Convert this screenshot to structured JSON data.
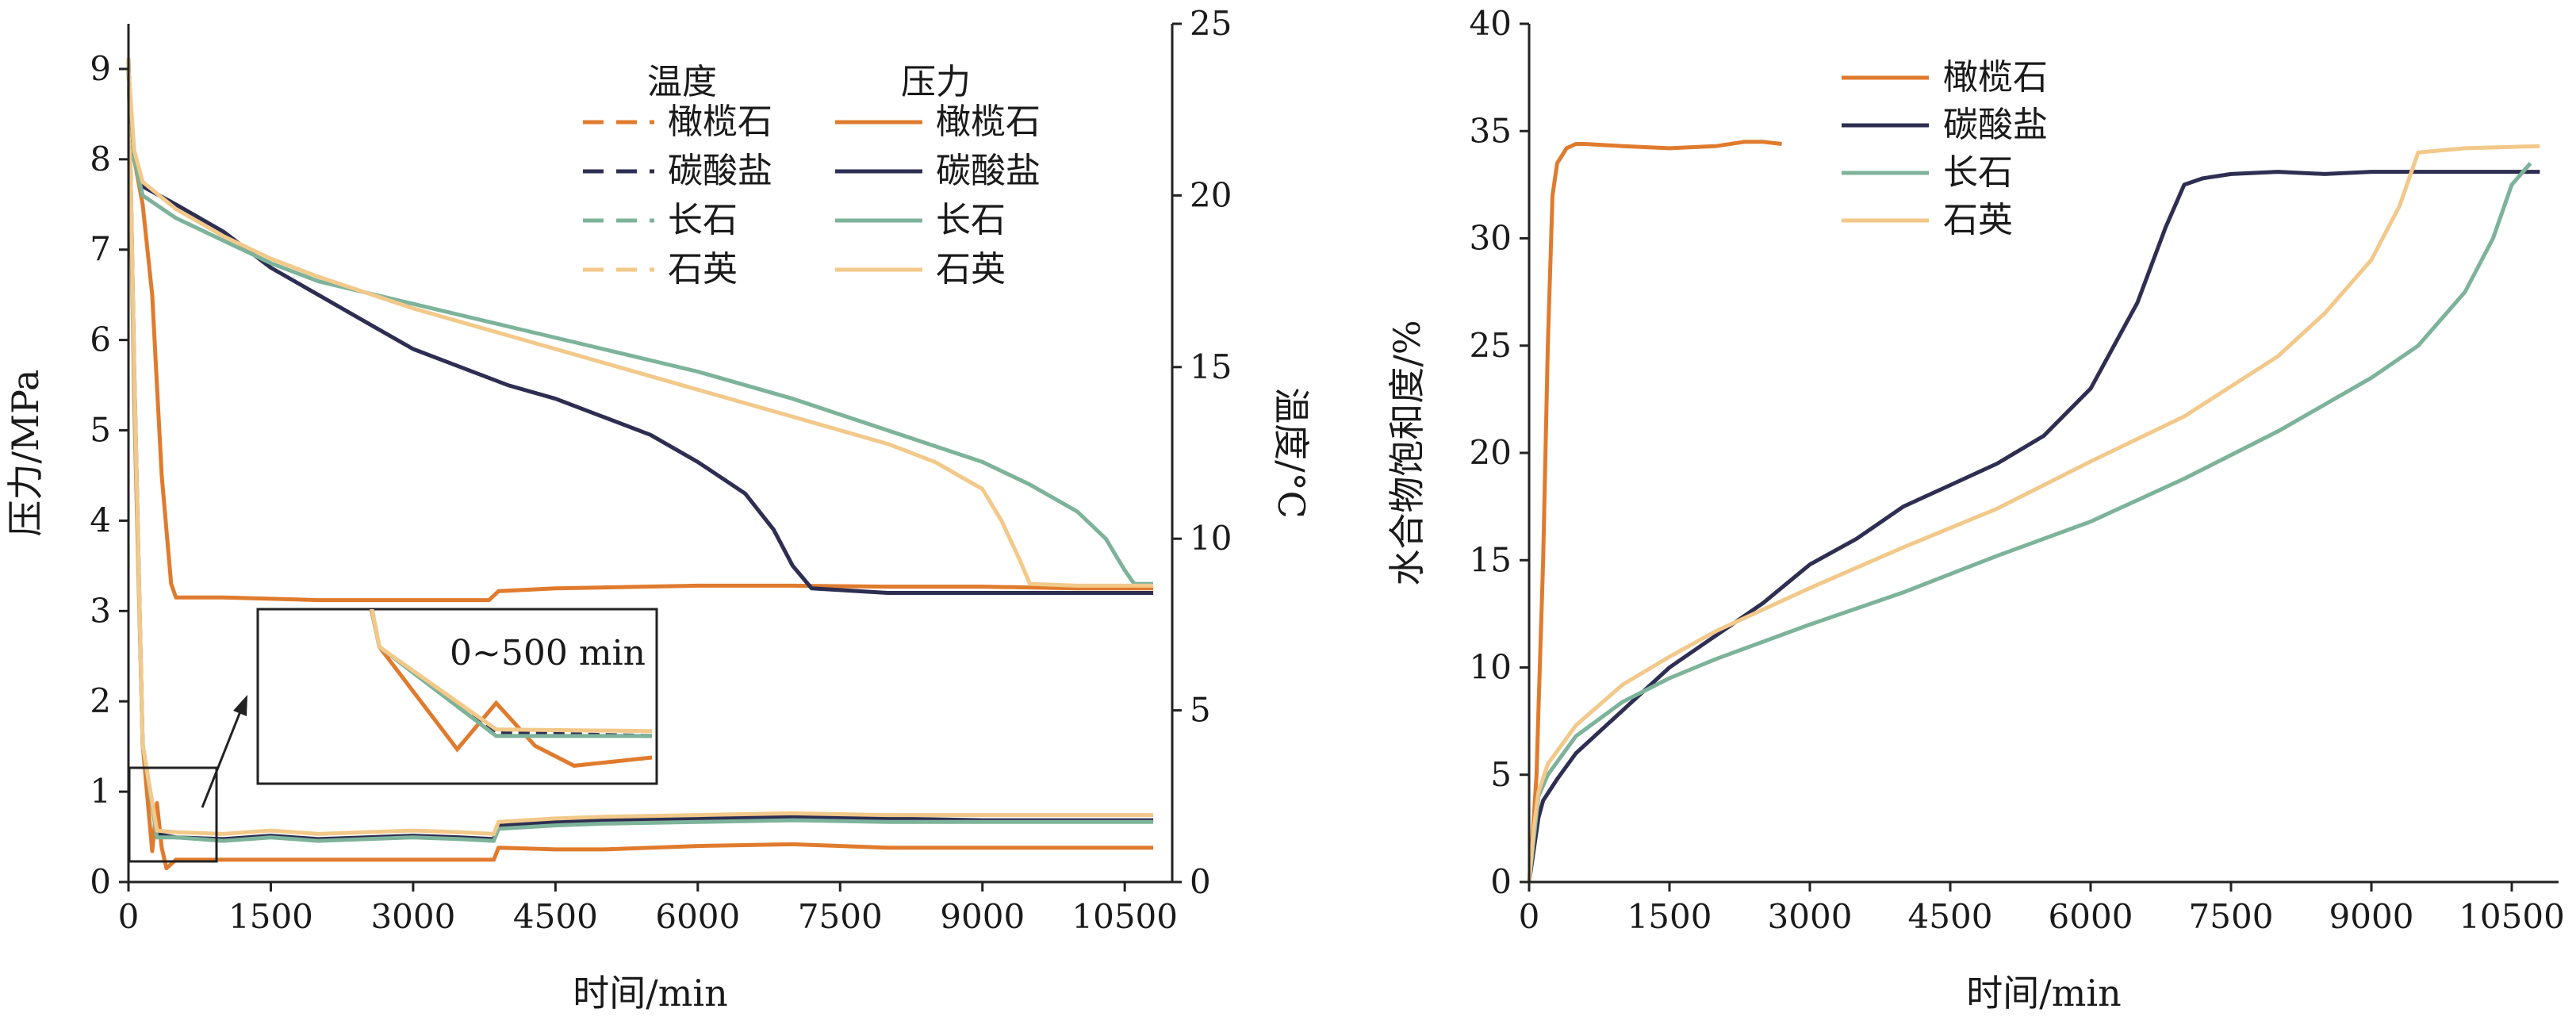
{
  "chart_data": [
    {
      "type": "line",
      "xlabel": "时间/min",
      "ylabel": "压力/MPa",
      "y2label": "温度/°C",
      "xlim": [
        0,
        11000
      ],
      "ylim": [
        0,
        9.5
      ],
      "y2lim": [
        0,
        25
      ],
      "xticks": [
        0,
        1500,
        3000,
        4500,
        6000,
        7500,
        9000,
        10500
      ],
      "yticks": [
        0,
        1,
        2,
        3,
        4,
        5,
        6,
        7,
        8,
        9
      ],
      "y2ticks": [
        0,
        5,
        10,
        15,
        20,
        25
      ],
      "legend": {
        "temp_header": "温度",
        "pressure_header": "压力",
        "placement": "top-right",
        "entries": [
          "橄榄石",
          "碳酸盐",
          "长石",
          "石英"
        ]
      },
      "inset_label": "0~500 min",
      "colors": {
        "olivine": "#E07B2E",
        "carbonate": "#2E2E52",
        "feldspar": "#7DB39A",
        "quartz": "#F2C98A"
      },
      "series": [
        {
          "name": "橄榄石",
          "kind": "pressure",
          "color": "#E07B2E",
          "x": [
            0,
            60,
            150,
            250,
            350,
            450,
            500,
            1000,
            2000,
            3000,
            3800,
            3900,
            4500,
            6000,
            7000,
            8000,
            9000,
            10000,
            10800
          ],
          "y": [
            9.0,
            8.0,
            7.5,
            6.5,
            4.5,
            3.3,
            3.15,
            3.15,
            3.12,
            3.12,
            3.12,
            3.22,
            3.25,
            3.28,
            3.28,
            3.27,
            3.27,
            3.25,
            3.25
          ]
        },
        {
          "name": "碳酸盐",
          "kind": "pressure",
          "color": "#2E2E52",
          "x": [
            0,
            60,
            150,
            500,
            1000,
            1500,
            2000,
            2500,
            3000,
            3500,
            4000,
            4500,
            5000,
            5500,
            6000,
            6500,
            6800,
            7000,
            7200,
            8000,
            9000,
            10000,
            10800
          ],
          "y": [
            9.0,
            8.0,
            7.7,
            7.5,
            7.2,
            6.8,
            6.5,
            6.2,
            5.9,
            5.7,
            5.5,
            5.35,
            5.15,
            4.95,
            4.65,
            4.3,
            3.9,
            3.5,
            3.25,
            3.2,
            3.2,
            3.2,
            3.2
          ]
        },
        {
          "name": "长石",
          "kind": "pressure",
          "color": "#7DB39A",
          "x": [
            0,
            60,
            150,
            500,
            1000,
            1500,
            2000,
            3000,
            4000,
            5000,
            6000,
            7000,
            8000,
            9000,
            9500,
            10000,
            10300,
            10500,
            10600,
            10800
          ],
          "y": [
            9.0,
            8.0,
            7.6,
            7.35,
            7.1,
            6.85,
            6.65,
            6.4,
            6.15,
            5.9,
            5.65,
            5.35,
            5.0,
            4.65,
            4.4,
            4.1,
            3.8,
            3.45,
            3.3,
            3.3
          ]
        },
        {
          "name": "石英",
          "kind": "pressure",
          "color": "#F2C98A",
          "x": [
            0,
            60,
            150,
            500,
            1000,
            1500,
            2000,
            3000,
            4000,
            5000,
            6000,
            7000,
            8000,
            8500,
            9000,
            9200,
            9400,
            9500,
            10000,
            10800
          ],
          "y": [
            9.0,
            8.1,
            7.75,
            7.45,
            7.15,
            6.9,
            6.7,
            6.35,
            6.05,
            5.75,
            5.45,
            5.15,
            4.85,
            4.65,
            4.35,
            4.0,
            3.55,
            3.3,
            3.28,
            3.28
          ]
        },
        {
          "name": "橄榄石",
          "kind": "temperature",
          "color": "#E07B2E",
          "x": [
            0,
            60,
            150,
            250,
            300,
            350,
            400,
            500,
            1000,
            1500,
            2000,
            2500,
            3000,
            3500,
            3850,
            3900,
            4500,
            5000,
            6000,
            7000,
            8000,
            9000,
            10000,
            10800
          ],
          "y": [
            24,
            14,
            4,
            0.9,
            2.3,
            1.0,
            0.4,
            0.65,
            0.65,
            0.65,
            0.65,
            0.65,
            0.65,
            0.65,
            0.65,
            1.0,
            0.95,
            0.95,
            1.05,
            1.1,
            1.0,
            1.0,
            1.0,
            1.0
          ]
        },
        {
          "name": "碳酸盐",
          "kind": "temperature",
          "color": "#2E2E52",
          "x": [
            0,
            60,
            150,
            300,
            500,
            1000,
            1500,
            2000,
            2500,
            3000,
            3500,
            3850,
            3900,
            4500,
            5000,
            6000,
            7000,
            8000,
            9000,
            10000,
            10800
          ],
          "y": [
            24,
            15,
            4,
            1.4,
            1.3,
            1.25,
            1.35,
            1.25,
            1.3,
            1.35,
            1.3,
            1.25,
            1.65,
            1.75,
            1.8,
            1.85,
            1.9,
            1.85,
            1.8,
            1.8,
            1.8
          ]
        },
        {
          "name": "长石",
          "kind": "temperature",
          "color": "#7DB39A",
          "x": [
            0,
            60,
            150,
            300,
            500,
            1000,
            1500,
            2000,
            2500,
            3000,
            3500,
            3850,
            3900,
            4500,
            5000,
            6000,
            7000,
            8000,
            9000,
            10000,
            10800
          ],
          "y": [
            24,
            14.5,
            4,
            1.3,
            1.3,
            1.2,
            1.3,
            1.2,
            1.25,
            1.3,
            1.25,
            1.2,
            1.55,
            1.65,
            1.7,
            1.75,
            1.8,
            1.75,
            1.75,
            1.75,
            1.75
          ]
        },
        {
          "name": "石英",
          "kind": "temperature",
          "color": "#F2C98A",
          "x": [
            0,
            60,
            150,
            300,
            500,
            1000,
            1500,
            2000,
            2500,
            3000,
            3500,
            3850,
            3900,
            4500,
            5000,
            6000,
            7000,
            8000,
            9000,
            10000,
            10800
          ],
          "y": [
            24,
            15,
            4,
            1.5,
            1.45,
            1.4,
            1.5,
            1.4,
            1.45,
            1.5,
            1.45,
            1.4,
            1.75,
            1.85,
            1.9,
            1.95,
            2.0,
            1.95,
            1.95,
            1.95,
            1.95
          ]
        }
      ]
    },
    {
      "type": "line",
      "xlabel": "时间/min",
      "ylabel": "水合物饱和度/%",
      "xlim": [
        0,
        11000
      ],
      "ylim": [
        0,
        40
      ],
      "xticks": [
        0,
        1500,
        3000,
        4500,
        6000,
        7500,
        9000,
        10500
      ],
      "yticks": [
        0,
        5,
        10,
        15,
        20,
        25,
        30,
        35,
        40
      ],
      "legend": {
        "placement": "top-left",
        "entries": [
          "橄榄石",
          "碳酸盐",
          "长石",
          "石英"
        ]
      },
      "series": [
        {
          "name": "橄榄石",
          "color": "#E07B2E",
          "x": [
            0,
            50,
            80,
            100,
            150,
            200,
            250,
            300,
            400,
            500,
            600,
            1000,
            1500,
            2000,
            2300,
            2500,
            2700
          ],
          "y": [
            0,
            3,
            5,
            8,
            15,
            25,
            32,
            33.5,
            34.2,
            34.4,
            34.4,
            34.3,
            34.2,
            34.3,
            34.5,
            34.5,
            34.4
          ]
        },
        {
          "name": "碳酸盐",
          "color": "#2E2E52",
          "x": [
            0,
            100,
            150,
            300,
            500,
            1000,
            1500,
            2000,
            2500,
            3000,
            3500,
            4000,
            4500,
            5000,
            5500,
            6000,
            6500,
            6800,
            7000,
            7200,
            7500,
            8000,
            8500,
            9000,
            10000,
            10800
          ],
          "y": [
            0,
            3,
            3.8,
            4.8,
            6,
            8,
            10,
            11.5,
            13,
            14.8,
            16,
            17.5,
            18.5,
            19.5,
            20.8,
            23,
            27,
            30.5,
            32.5,
            32.8,
            33,
            33.1,
            33,
            33.1,
            33.1,
            33.1
          ]
        },
        {
          "name": "长石",
          "color": "#7DB39A",
          "x": [
            0,
            50,
            100,
            200,
            500,
            1000,
            1500,
            2000,
            3000,
            4000,
            5000,
            6000,
            7000,
            8000,
            9000,
            9500,
            10000,
            10300,
            10500,
            10700
          ],
          "y": [
            0,
            2,
            4,
            5,
            6.8,
            8.4,
            9.5,
            10.4,
            12,
            13.5,
            15.2,
            16.8,
            18.8,
            21,
            23.5,
            25,
            27.5,
            30,
            32.5,
            33.5
          ]
        },
        {
          "name": "石英",
          "color": "#F2C98A",
          "x": [
            0,
            50,
            100,
            200,
            500,
            1000,
            1500,
            2000,
            3000,
            4000,
            5000,
            6000,
            7000,
            8000,
            8500,
            9000,
            9300,
            9500,
            10000,
            10800
          ],
          "y": [
            0,
            2.5,
            4.2,
            5.5,
            7.3,
            9.2,
            10.5,
            11.7,
            13.7,
            15.6,
            17.4,
            19.6,
            21.7,
            24.5,
            26.5,
            29,
            31.5,
            34,
            34.2,
            34.3
          ]
        }
      ]
    }
  ]
}
